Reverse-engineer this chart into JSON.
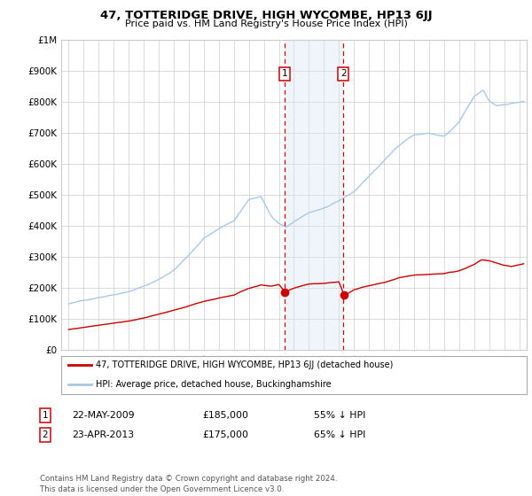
{
  "title": "47, TOTTERIDGE DRIVE, HIGH WYCOMBE, HP13 6JJ",
  "subtitle": "Price paid vs. HM Land Registry's House Price Index (HPI)",
  "hpi_label": "HPI: Average price, detached house, Buckinghamshire",
  "price_label": "47, TOTTERIDGE DRIVE, HIGH WYCOMBE, HP13 6JJ (detached house)",
  "hpi_color": "#a8c8e8",
  "price_color": "#cc0000",
  "marker_color": "#cc0000",
  "sale1_year": 2009.38,
  "sale1_price": 185000,
  "sale1_label": "22-MAY-2009",
  "sale1_pct": "55% ↓ HPI",
  "sale2_year": 2013.3,
  "sale2_price": 175000,
  "sale2_label": "23-APR-2013",
  "sale2_pct": "65% ↓ HPI",
  "ylim_min": 0,
  "ylim_max": 1000000,
  "xlim_min": 1994.5,
  "xlim_max": 2025.5,
  "background_color": "#ffffff",
  "grid_color": "#cccccc",
  "shade_color": "#d8e8f5",
  "legend_box_color": "#cc0000",
  "hpi_waypoints_year": [
    1995,
    1996,
    1997,
    1998,
    1999,
    2000,
    2001,
    2002,
    2003,
    2004,
    2005,
    2006,
    2007,
    2007.8,
    2008.5,
    2009.0,
    2009.5,
    2010.5,
    2011,
    2012,
    2013,
    2013.5,
    2014,
    2015,
    2016,
    2017,
    2017.5,
    2018,
    2019,
    2020,
    2020.5,
    2021,
    2022,
    2022.6,
    2023,
    2023.5,
    2024,
    2025.3
  ],
  "hpi_waypoints_val": [
    148000,
    158000,
    170000,
    180000,
    192000,
    210000,
    230000,
    260000,
    310000,
    365000,
    395000,
    420000,
    490000,
    500000,
    435000,
    410000,
    400000,
    430000,
    445000,
    460000,
    480000,
    495000,
    510000,
    560000,
    610000,
    660000,
    680000,
    695000,
    700000,
    690000,
    710000,
    735000,
    815000,
    835000,
    800000,
    785000,
    790000,
    800000
  ],
  "price_waypoints_year": [
    1995,
    1996,
    1997,
    1998,
    1999,
    2000,
    2001,
    2002,
    2003,
    2004,
    2005,
    2006,
    2007,
    2007.8,
    2008.5,
    2009.0,
    2009.4,
    2010,
    2011,
    2012,
    2013,
    2013.35,
    2014,
    2015,
    2016,
    2017,
    2018,
    2019,
    2020,
    2021,
    2022,
    2022.5,
    2023,
    2023.5,
    2024,
    2024.5,
    2025.3
  ],
  "price_waypoints_val": [
    65000,
    72000,
    80000,
    88000,
    95000,
    105000,
    116000,
    128000,
    142000,
    157000,
    168000,
    178000,
    200000,
    210000,
    205000,
    210000,
    185000,
    198000,
    212000,
    215000,
    220000,
    175000,
    195000,
    208000,
    220000,
    235000,
    245000,
    248000,
    250000,
    258000,
    280000,
    295000,
    292000,
    285000,
    278000,
    275000,
    282000
  ],
  "footnote": "Contains HM Land Registry data © Crown copyright and database right 2024.\nThis data is licensed under the Open Government Licence v3.0."
}
